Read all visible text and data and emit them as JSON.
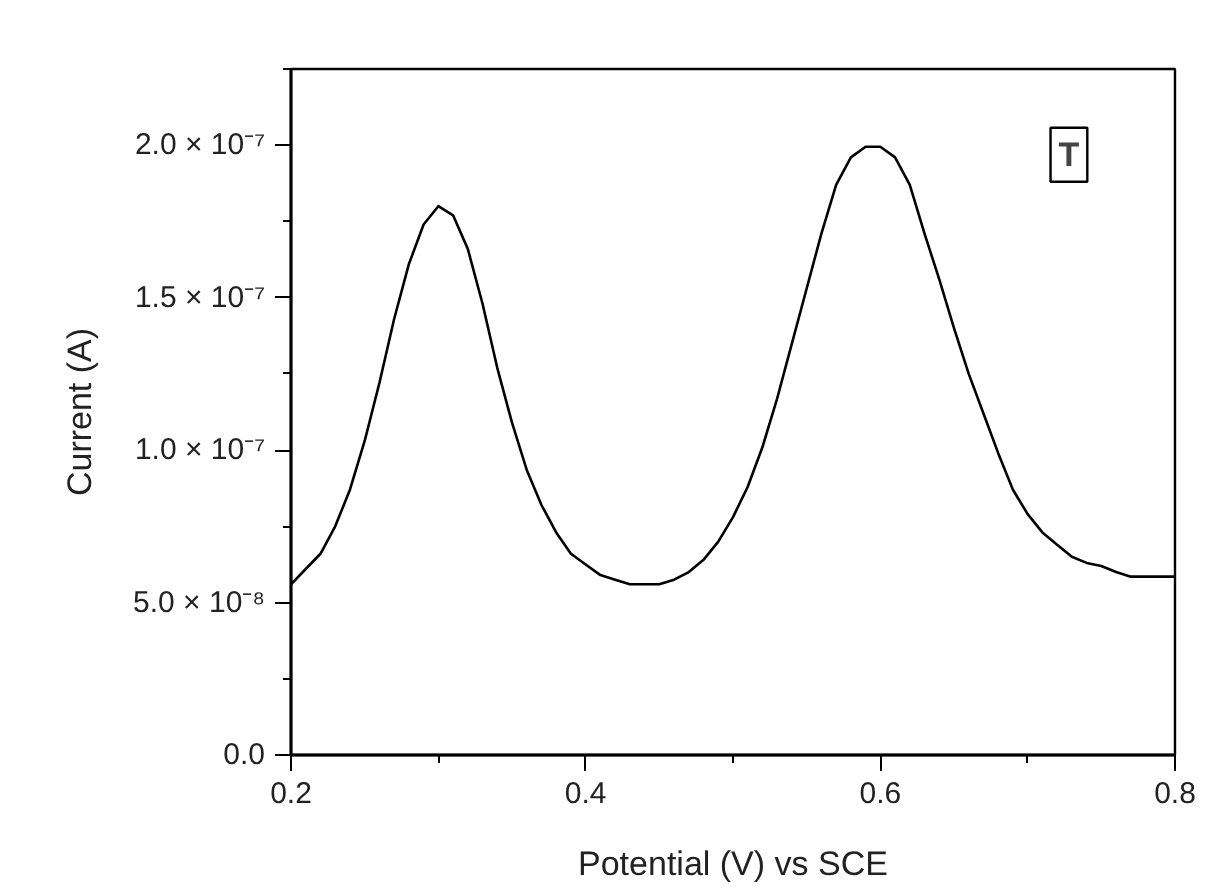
{
  "chart_data": {
    "type": "line",
    "xlabel": "Potential (V) vs SCE",
    "ylabel": "Current (A)",
    "annotations": [
      "T"
    ],
    "x": [
      0.2,
      0.21,
      0.22,
      0.23,
      0.24,
      0.25,
      0.26,
      0.27,
      0.28,
      0.29,
      0.3,
      0.31,
      0.32,
      0.33,
      0.34,
      0.35,
      0.36,
      0.37,
      0.38,
      0.39,
      0.4,
      0.41,
      0.42,
      0.43,
      0.44,
      0.45,
      0.46,
      0.47,
      0.48,
      0.49,
      0.5,
      0.51,
      0.52,
      0.53,
      0.54,
      0.55,
      0.56,
      0.57,
      0.58,
      0.59,
      0.6,
      0.61,
      0.62,
      0.63,
      0.64,
      0.65,
      0.66,
      0.67,
      0.68,
      0.69,
      0.7,
      0.71,
      0.72,
      0.73,
      0.74,
      0.75,
      0.76,
      0.77,
      0.8
    ],
    "series": [
      {
        "color": "#000000",
        "values": [
          5.6e-08,
          6.1e-08,
          6.6e-08,
          7.5e-08,
          8.7e-08,
          1.03e-07,
          1.22e-07,
          1.43e-07,
          1.61e-07,
          1.74e-07,
          1.8e-07,
          1.77e-07,
          1.66e-07,
          1.48e-07,
          1.27e-07,
          1.09e-07,
          9.35e-08,
          8.2e-08,
          7.3e-08,
          6.6e-08,
          6.25e-08,
          5.9e-08,
          5.75e-08,
          5.6e-08,
          5.6e-08,
          5.6e-08,
          5.75e-08,
          6e-08,
          6.4e-08,
          7e-08,
          7.8e-08,
          8.8e-08,
          1.01e-07,
          1.17e-07,
          1.35e-07,
          1.53e-07,
          1.71e-07,
          1.87e-07,
          1.96e-07,
          1.995e-07,
          1.995e-07,
          1.96e-07,
          1.87e-07,
          1.71e-07,
          1.56e-07,
          1.4e-07,
          1.25e-07,
          1.12e-07,
          9.9e-08,
          8.7e-08,
          7.9e-08,
          7.3e-08,
          6.9e-08,
          6.5e-08,
          6.3e-08,
          6.2e-08,
          6e-08,
          5.85e-08,
          5.85e-08
        ]
      }
    ],
    "xlim": [
      0.2,
      0.8
    ],
    "xticks": [
      0.2,
      0.4,
      0.6,
      0.8
    ],
    "ylim": [
      0,
      2.25e-07
    ],
    "yticks": [
      {
        "value": 0,
        "label": "0.0"
      },
      {
        "value": 5e-08,
        "label": "5.0 × 10⁻⁸"
      },
      {
        "value": 1e-07,
        "label": "1.0 × 10⁻⁷"
      },
      {
        "value": 1.5e-07,
        "label": "1.5 × 10⁻⁷"
      },
      {
        "value": 2e-07,
        "label": "2.0 × 10⁻⁷"
      }
    ],
    "grid": false,
    "marker": "none",
    "line_style": "solid"
  }
}
